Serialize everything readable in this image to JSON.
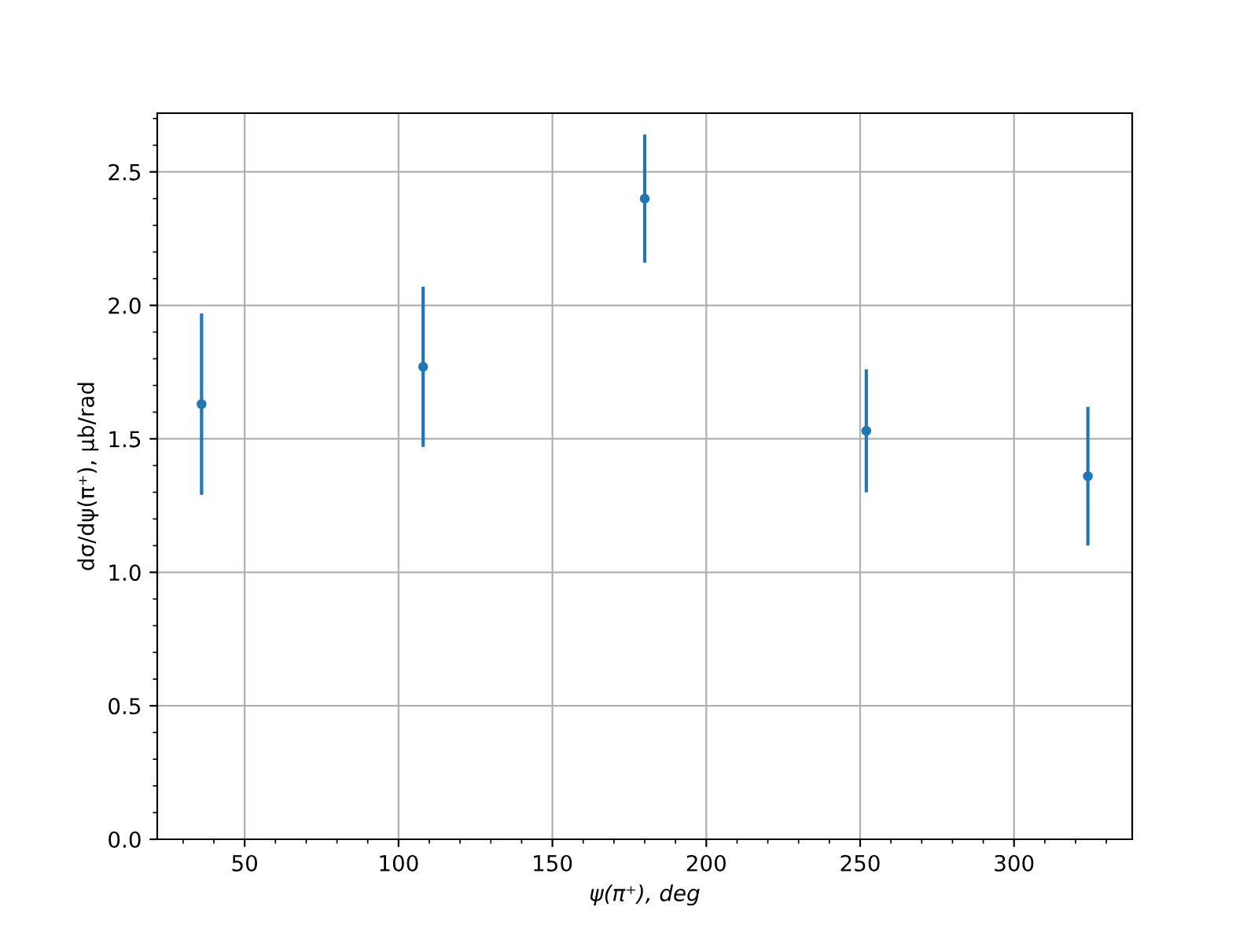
{
  "chart_data": {
    "type": "scatter",
    "xlabel": "ψ(π⁺), deg",
    "ylabel": "dσ/dψ(π⁺), μb/rad",
    "x": [
      36,
      108,
      180,
      252,
      324
    ],
    "series": [
      {
        "color": "#1f77b4",
        "values": [
          1.63,
          1.77,
          2.4,
          1.53,
          1.36
        ],
        "errors": [
          0.34,
          0.3,
          0.24,
          0.23,
          0.26
        ]
      }
    ],
    "xlim": [
      21.6,
      338.4
    ],
    "xticks": [
      50,
      100,
      150,
      200,
      250,
      300
    ],
    "ylim": [
      0,
      2.72
    ],
    "yticks": [
      {
        "value": 0,
        "label": "0.0"
      },
      {
        "value": 0.5,
        "label": "0.5"
      },
      {
        "value": 1,
        "label": "1.0"
      },
      {
        "value": 1.5,
        "label": "1.5"
      },
      {
        "value": 2,
        "label": "2.0"
      },
      {
        "value": 2.5,
        "label": "2.5"
      }
    ],
    "grid": true,
    "marker": "circle"
  }
}
